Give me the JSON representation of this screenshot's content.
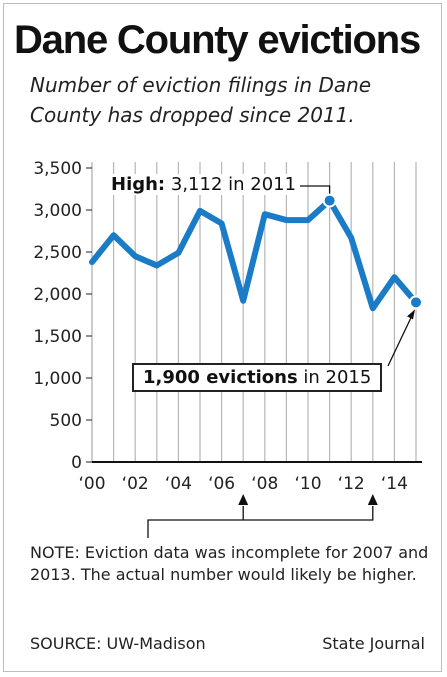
{
  "title": "Dane County evictions",
  "subtitle": "Number of eviction filings in Dane County has dropped since 2011.",
  "high_callout": {
    "label": "High:",
    "text": "3,112 in 2011"
  },
  "end_callout": {
    "label": "1,900 evictions",
    "text": "in 2015"
  },
  "note": "NOTE: Eviction data was incomplete for 2007 and 2013. The actual number would likely be higher.",
  "source": "SOURCE: UW-Madison",
  "credit": "State Journal",
  "colors": {
    "line": "#1a7bc7",
    "grid": "#b5b5b5",
    "text": "#222222"
  },
  "chart_data": {
    "type": "line",
    "title": "Dane County evictions",
    "xlabel": "",
    "ylabel": "",
    "x": [
      2000,
      2001,
      2002,
      2003,
      2004,
      2005,
      2006,
      2007,
      2008,
      2009,
      2010,
      2011,
      2012,
      2013,
      2014,
      2015
    ],
    "series": [
      {
        "values": [
          2380,
          2700,
          2450,
          2340,
          2490,
          2990,
          2840,
          1920,
          2950,
          2880,
          2880,
          3112,
          2670,
          1830,
          2200,
          1900
        ]
      }
    ],
    "ylim": [
      0,
      3500
    ],
    "yticks": [
      0,
      500,
      1000,
      1500,
      2000,
      2500,
      3000,
      3500
    ],
    "ytick_labels": [
      "0",
      "500",
      "1,000",
      "1,500",
      "2,000",
      "2,500",
      "3,000",
      "3,500"
    ],
    "xticks": [
      2000,
      2002,
      2004,
      2006,
      2008,
      2010,
      2012,
      2014
    ],
    "xtick_labels": [
      "‘00",
      "‘02",
      "‘04",
      "‘06",
      "‘08",
      "‘10",
      "‘12",
      "‘14"
    ],
    "grid": "vertical",
    "highlighted_points": [
      2011,
      2015
    ]
  }
}
